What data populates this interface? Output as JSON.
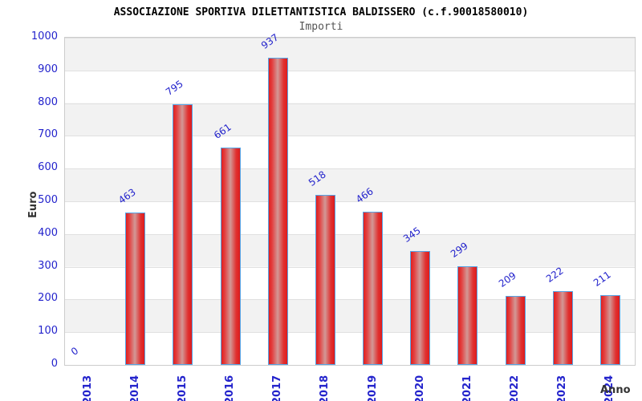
{
  "header": {
    "title": "ASSOCIAZIONE SPORTIVA DILETTANTISTICA BALDISSERO (c.f.90018580010)",
    "subtitle": "Importi"
  },
  "chart_data": {
    "type": "bar",
    "title": "ASSOCIAZIONE SPORTIVA DILETTANTISTICA BALDISSERO (c.f.90018580010)",
    "subtitle": "Importi",
    "categories": [
      "2013",
      "2014",
      "2015",
      "2016",
      "2017",
      "2018",
      "2019",
      "2020",
      "2021",
      "2022",
      "2023",
      "2024"
    ],
    "values": [
      0,
      463,
      795,
      661,
      937,
      518,
      466,
      345,
      299,
      209,
      222,
      211
    ],
    "xlabel": "Anno",
    "ylabel": "Euro",
    "ylim": [
      0,
      1000
    ],
    "ytick_step": 100,
    "yticks": [
      0,
      100,
      200,
      300,
      400,
      500,
      600,
      700,
      800,
      900,
      1000
    ],
    "grid": "horizontal-alternating-bands",
    "legend": "none",
    "colors": {
      "bar_fill": "#e01f1f",
      "bar_fill_center": "#d29896",
      "bar_border": "#55a4e6",
      "value_label": "#2323cc",
      "tick_label": "#2323cc",
      "band_gray": "#f2f2f2",
      "band_white": "#ffffff",
      "axis_title": "#333333",
      "subtitle_color": "#555555"
    }
  }
}
